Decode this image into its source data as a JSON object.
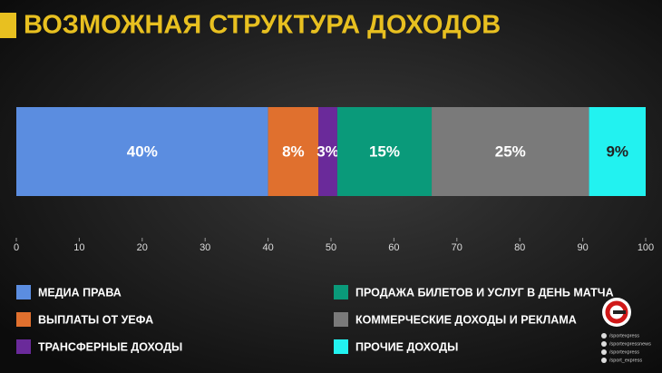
{
  "chart_data": {
    "type": "bar",
    "orientation": "horizontal",
    "stacked": true,
    "title": "ВОЗМОЖНАЯ СТРУКТУРА ДОХОДОВ",
    "series": [
      {
        "name": "МЕДИА ПРАВА",
        "color": "#5b8de0",
        "values": [
          40
        ],
        "value_labels": [
          "40%"
        ]
      },
      {
        "name": "ВЫПЛАТЫ ОТ УЕФА",
        "color": "#e0702e",
        "values": [
          8
        ],
        "value_labels": [
          "8%"
        ]
      },
      {
        "name": "ТРАНСФЕРНЫЕ ДОХОДЫ",
        "color": "#6a2a9a",
        "values": [
          3
        ],
        "value_labels": [
          "3%"
        ]
      },
      {
        "name": "ПРОДАЖА БИЛЕТОВ И УСЛУГ В ДЕНЬ МАТЧА",
        "color": "#0a9a7a",
        "values": [
          15
        ],
        "value_labels": [
          "15%"
        ]
      },
      {
        "name": "КОММЕРЧЕСКИЕ ДОХОДЫ И РЕКЛАМА",
        "color": "#7a7a7a",
        "values": [
          25
        ],
        "value_labels": [
          "25%"
        ]
      },
      {
        "name": "ПРОЧИЕ ДОХОДЫ",
        "color": "#22f2f0",
        "values": [
          9
        ],
        "value_labels": [
          "9%"
        ]
      }
    ],
    "xlim": [
      0,
      100
    ],
    "xticks": [
      0,
      10,
      20,
      30,
      40,
      50,
      60,
      70,
      80,
      90,
      100
    ]
  },
  "brand": {
    "handles": [
      "/sportexpress",
      "/sportexpressnews",
      "/sportexpress",
      "/sport_express"
    ]
  }
}
